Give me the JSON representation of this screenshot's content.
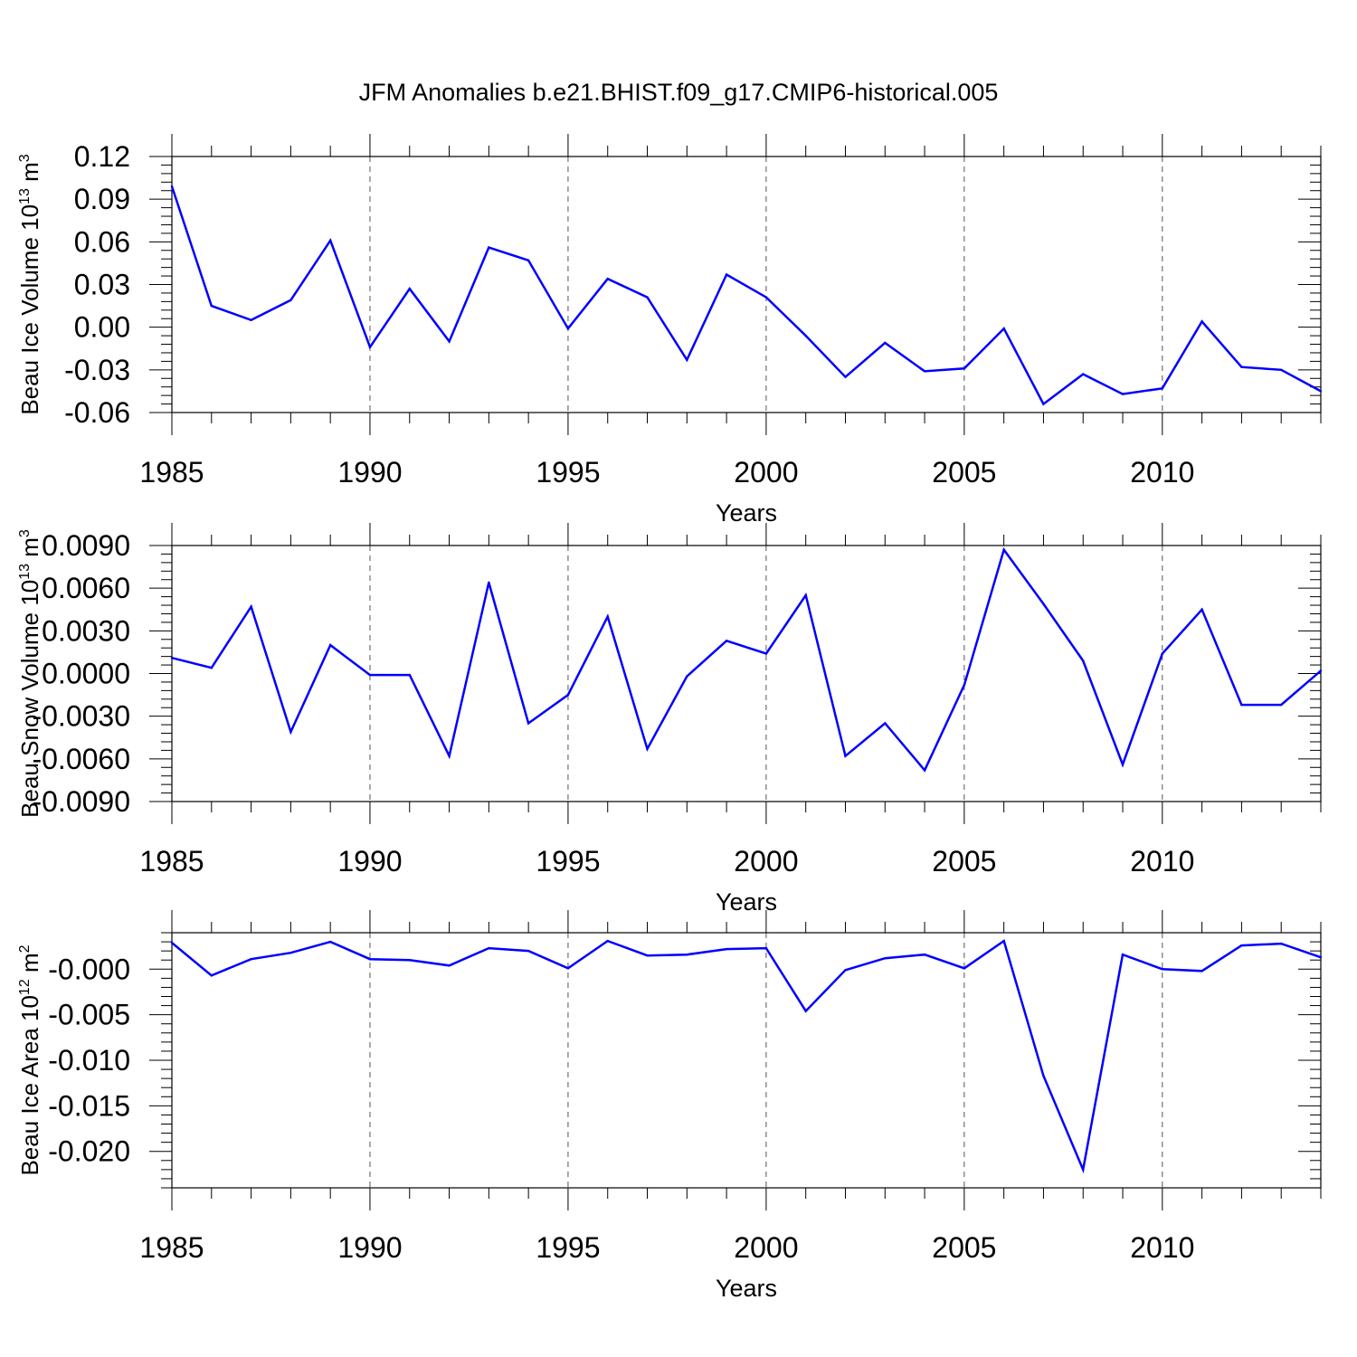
{
  "figure": {
    "title": "JFM Anomalies b.e21.BHIST.f09_g17.CMIP6-historical.005"
  },
  "colors": {
    "series": "#0000ff",
    "axis": "#000000",
    "grid": "#555555"
  },
  "chart_data": [
    {
      "type": "line",
      "title": "JFM Anomalies b.e21.BHIST.f09_g17.CMIP6-historical.005",
      "xlabel": "Years",
      "ylabel": "Beau Ice Volume 10",
      "ylabel_exp": "13",
      "ylabel_unit": "m",
      "ylabel_unit_exp": "3",
      "xlim": [
        1985,
        2014
      ],
      "ylim": [
        -0.06,
        0.12
      ],
      "yticks": [
        -0.06,
        -0.03,
        0.0,
        0.03,
        0.06,
        0.09,
        0.12
      ],
      "ytick_labels": [
        "-0.06",
        "-0.03",
        "0.00",
        "0.03",
        "0.06",
        "0.09",
        "0.12"
      ],
      "xticks": [
        1985,
        1990,
        1995,
        2000,
        2005,
        2010
      ],
      "xtick_labels": [
        "1985",
        "1990",
        "1995",
        "2000",
        "2005",
        "2010"
      ],
      "x": [
        1985,
        1986,
        1987,
        1988,
        1989,
        1990,
        1991,
        1992,
        1993,
        1994,
        1995,
        1996,
        1997,
        1998,
        1999,
        2000,
        2001,
        2002,
        2003,
        2004,
        2005,
        2006,
        2007,
        2008,
        2009,
        2010,
        2011,
        2012,
        2013,
        2014
      ],
      "series": [
        {
          "name": "Beau Ice Volume",
          "values": [
            0.099,
            0.015,
            0.005,
            0.019,
            0.061,
            -0.014,
            0.027,
            -0.01,
            0.056,
            0.047,
            -0.001,
            0.034,
            0.021,
            -0.023,
            0.037,
            0.021,
            -0.006,
            -0.035,
            -0.011,
            -0.031,
            -0.029,
            -0.001,
            -0.054,
            -0.033,
            -0.047,
            -0.043,
            0.004,
            -0.028,
            -0.03,
            -0.045
          ]
        }
      ]
    },
    {
      "type": "line",
      "title": "",
      "xlabel": "Years",
      "ylabel": "Beau Snow Volume 10",
      "ylabel_exp": "13",
      "ylabel_unit": "m",
      "ylabel_unit_exp": "3",
      "xlim": [
        1985,
        2014
      ],
      "ylim": [
        -0.009,
        0.009
      ],
      "yticks": [
        -0.009,
        -0.006,
        -0.003,
        0.0,
        0.003,
        0.006,
        0.009
      ],
      "ytick_labels": [
        "-0.0090",
        "-0.0060",
        "-0.0030",
        "0.0000",
        "0.0030",
        "0.0060",
        "0.0090"
      ],
      "xticks": [
        1985,
        1990,
        1995,
        2000,
        2005,
        2010
      ],
      "xtick_labels": [
        "1985",
        "1990",
        "1995",
        "2000",
        "2005",
        "2010"
      ],
      "x": [
        1985,
        1986,
        1987,
        1988,
        1989,
        1990,
        1991,
        1992,
        1993,
        1994,
        1995,
        1996,
        1997,
        1998,
        1999,
        2000,
        2001,
        2002,
        2003,
        2004,
        2005,
        2006,
        2007,
        2008,
        2009,
        2010,
        2011,
        2012,
        2013,
        2014
      ],
      "series": [
        {
          "name": "Beau Snow Volume",
          "values": [
            0.0011,
            0.0004,
            0.0047,
            -0.0041,
            0.002,
            -0.0001,
            -0.0001,
            -0.0058,
            0.0064,
            -0.0035,
            -0.0015,
            0.004,
            -0.0053,
            -0.0002,
            0.0023,
            0.0014,
            0.0055,
            -0.0058,
            -0.0035,
            -0.0068,
            -0.0008,
            0.0087,
            0.0049,
            0.0009,
            -0.0064,
            0.0014,
            0.0045,
            -0.0022,
            -0.0022,
            0.0002
          ]
        }
      ]
    },
    {
      "type": "line",
      "title": "",
      "xlabel": "Years",
      "ylabel": "Beau Ice Area 10",
      "ylabel_exp": "12",
      "ylabel_unit": "m",
      "ylabel_unit_exp": "2",
      "xlim": [
        1985,
        2014
      ],
      "ylim": [
        -0.024,
        0.004
      ],
      "yticks": [
        -0.02,
        -0.015,
        -0.01,
        -0.005,
        0.0
      ],
      "ytick_labels": [
        "-0.020",
        "-0.015",
        "-0.010",
        "-0.005",
        "-0.000"
      ],
      "xticks": [
        1985,
        1990,
        1995,
        2000,
        2005,
        2010
      ],
      "xtick_labels": [
        "1985",
        "1990",
        "1995",
        "2000",
        "2005",
        "2010"
      ],
      "x": [
        1985,
        1986,
        1987,
        1988,
        1989,
        1990,
        1991,
        1992,
        1993,
        1994,
        1995,
        1996,
        1997,
        1998,
        1999,
        2000,
        2001,
        2002,
        2003,
        2004,
        2005,
        2006,
        2007,
        2008,
        2009,
        2010,
        2011,
        2012,
        2013,
        2014
      ],
      "series": [
        {
          "name": "Beau Ice Area",
          "values": [
            0.0029,
            -0.0007,
            0.0011,
            0.0018,
            0.003,
            0.0011,
            0.001,
            0.0004,
            0.0023,
            0.002,
            0.0001,
            0.0031,
            0.0015,
            0.0016,
            0.0022,
            0.0023,
            -0.0046,
            -0.0001,
            0.0012,
            0.0016,
            0.0001,
            0.0031,
            -0.0117,
            -0.022,
            0.0016,
            -0.0,
            -0.0002,
            0.0026,
            0.0028,
            0.0013
          ]
        }
      ]
    }
  ]
}
